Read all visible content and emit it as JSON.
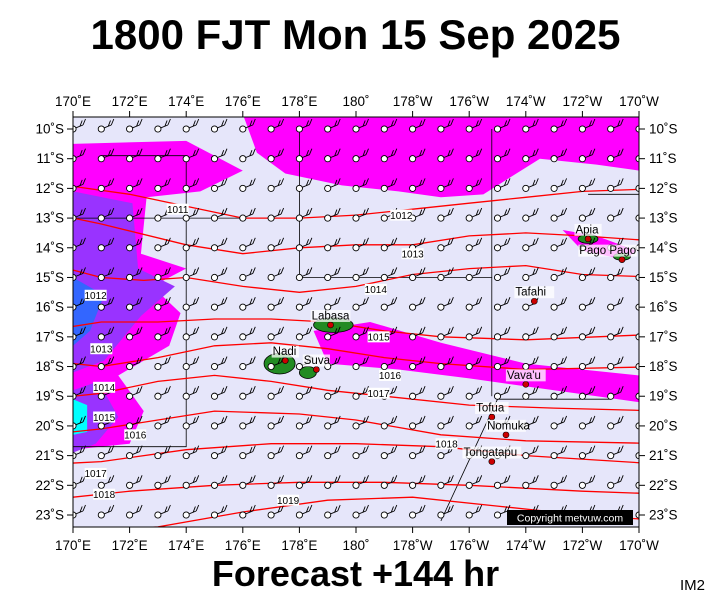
{
  "title": "1800 FJT Mon 15 Sep 2025",
  "footer": "Forecast +144 hr",
  "corner_label": "IM2",
  "copyright": "Copyright metvuw.com",
  "colors": {
    "background_field": "#e6e6fa",
    "isobar": "#ff0000",
    "rain_magenta": "#ff00ff",
    "rain_purple": "#9933ff",
    "rain_blue": "#3366ff",
    "rain_cyan": "#00ffff",
    "land": "#228b22"
  },
  "axes": {
    "lon_labels": [
      "170˚E",
      "172˚E",
      "174˚E",
      "176˚E",
      "178˚E",
      "180˚",
      "178˚W",
      "176˚W",
      "174˚W",
      "172˚W",
      "170˚W"
    ],
    "lat_labels": [
      "10˚S",
      "11˚S",
      "12˚S",
      "13˚S",
      "14˚S",
      "15˚S",
      "16˚S",
      "17˚S",
      "18˚S",
      "19˚S",
      "20˚S",
      "21˚S",
      "22˚S",
      "23˚S"
    ]
  },
  "isobar_labels": [
    {
      "text": "1011",
      "lon": 173.7,
      "lat": -12.7
    },
    {
      "text": "1012",
      "lon": 170.8,
      "lat": -15.6
    },
    {
      "text": "1012",
      "lon": 181.6,
      "lat": -12.9
    },
    {
      "text": "1013",
      "lon": 182.0,
      "lat": -14.2
    },
    {
      "text": "1013",
      "lon": 171.0,
      "lat": -17.4
    },
    {
      "text": "1014",
      "lon": 180.7,
      "lat": -15.4
    },
    {
      "text": "1014",
      "lon": 171.1,
      "lat": -18.7
    },
    {
      "text": "1015",
      "lon": 180.8,
      "lat": -17.0
    },
    {
      "text": "1015",
      "lon": 171.1,
      "lat": -19.7
    },
    {
      "text": "1016",
      "lon": 181.2,
      "lat": -18.3
    },
    {
      "text": "1016",
      "lon": 172.2,
      "lat": -20.3
    },
    {
      "text": "1017",
      "lon": 180.8,
      "lat": -18.9
    },
    {
      "text": "1017",
      "lon": 170.8,
      "lat": -21.6
    },
    {
      "text": "1018",
      "lon": 183.2,
      "lat": -20.6
    },
    {
      "text": "1018",
      "lon": 171.1,
      "lat": -22.3
    },
    {
      "text": "1019",
      "lon": 177.6,
      "lat": -22.5
    }
  ],
  "places": [
    {
      "name": "Apia",
      "lon": 188.2,
      "lat": -13.7
    },
    {
      "name": "Pago Pago",
      "lon": 189.4,
      "lat": -14.4
    },
    {
      "name": "Tafahi",
      "lon": 186.3,
      "lat": -15.8
    },
    {
      "name": "Labasa",
      "lon": 179.1,
      "lat": -16.6
    },
    {
      "name": "Nadi",
      "lon": 177.5,
      "lat": -17.8
    },
    {
      "name": "Suva",
      "lon": 178.6,
      "lat": -18.1
    },
    {
      "name": "Vava'u",
      "lon": 186.0,
      "lat": -18.6
    },
    {
      "name": "Tofua",
      "lon": 184.8,
      "lat": -19.7
    },
    {
      "name": "Nomuka",
      "lon": 185.3,
      "lat": -20.3
    },
    {
      "name": "Tongatapu",
      "lon": 184.8,
      "lat": -21.2
    }
  ]
}
